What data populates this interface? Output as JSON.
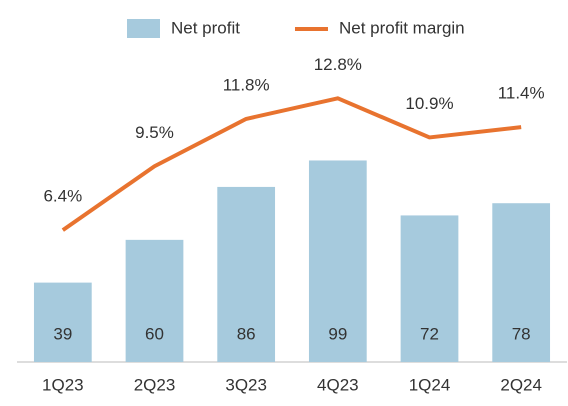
{
  "chart_data": {
    "type": "bar",
    "categories": [
      "1Q23",
      "2Q23",
      "3Q23",
      "4Q23",
      "1Q24",
      "2Q24"
    ],
    "series": [
      {
        "name": "Net profit",
        "type": "bar",
        "color": "#a6cadd",
        "values": [
          39,
          60,
          86,
          99,
          72,
          78
        ]
      },
      {
        "name": "Net profit margin",
        "type": "line",
        "axis": "y2",
        "color": "#e8732f",
        "values": [
          6.4,
          9.5,
          11.8,
          12.8,
          10.9,
          11.4
        ],
        "value_labels": [
          "6.4%",
          "9.5%",
          "11.8%",
          "12.8%",
          "10.9%",
          "11.4%"
        ]
      }
    ],
    "ylim": [
      0,
      168
    ],
    "y2lim": [
      0,
      16.6
    ],
    "legend": "top"
  }
}
